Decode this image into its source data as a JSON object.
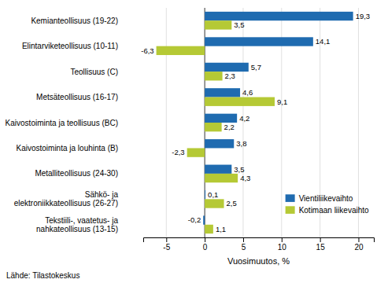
{
  "chart_data": {
    "type": "bar",
    "orientation": "horizontal",
    "categories": [
      "Tekstiili-, vaatetus- ja\nnahkateollisuus (13-15)",
      "Sähkö- ja\nelektroniikkateollisuus (26-27)",
      "Metalliteollisuus (24-30)",
      "Kaivostoiminta ja louhinta (B)",
      "Kaivostoiminta ja teollisuus (BC)",
      "Metsäteollisuus (16-17)",
      "Teollisuus (C)",
      "Elintarviketeollisuus (10-11)",
      "Kemianteollisuus (19-22)"
    ],
    "series": [
      {
        "name": "Vientiliikevaihto",
        "color": "#1F6BB0",
        "values": [
          -0.2,
          0.1,
          3.5,
          3.8,
          4.2,
          4.6,
          5.7,
          14.1,
          19.3
        ],
        "value_labels": [
          "-0,2",
          "0,1",
          "3,5",
          "3,8",
          "4,2",
          "4,6",
          "5,7",
          "14,1",
          "19,3"
        ]
      },
      {
        "name": "Kotimaan liikevaihto",
        "color": "#B5C935",
        "values": [
          1.1,
          2.5,
          4.3,
          -2.3,
          2.2,
          9.1,
          2.3,
          -6.3,
          3.5
        ],
        "value_labels": [
          "1,1",
          "2,5",
          "4,3",
          "-2,3",
          "2,2",
          "9,1",
          "2,3",
          "-6,3",
          "3,5"
        ]
      }
    ],
    "xlim": [
      -8,
      22
    ],
    "xticks": [
      -5,
      0,
      5,
      10,
      15,
      20
    ],
    "xlabel": "Vuosimuutos, %",
    "annotations": [
      "Lähde: Tilastokeskus"
    ],
    "data_labels": true,
    "grid": true,
    "legend": "lower right"
  }
}
